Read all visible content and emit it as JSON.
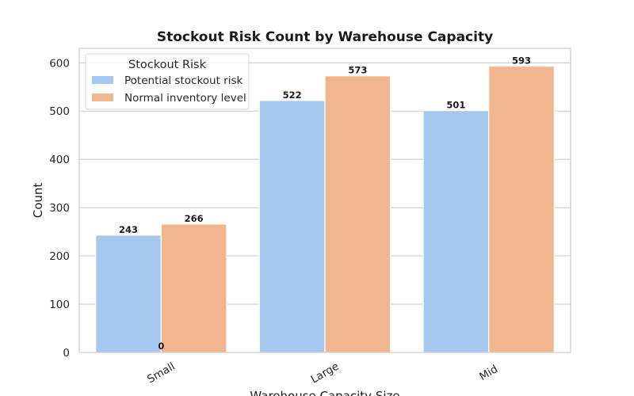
{
  "chart_data": {
    "type": "bar",
    "title": "Stockout Risk Count by Warehouse Capacity",
    "xlabel": "Warehouse Capacity Size",
    "ylabel": "Count",
    "categories": [
      "Small",
      "Large",
      "Mid"
    ],
    "series": [
      {
        "name": "Potential stockout risk",
        "values": [
          243,
          522,
          501
        ],
        "color": "#a7c8ee"
      },
      {
        "name": "Normal inventory level",
        "values": [
          266,
          573,
          593
        ],
        "color": "#f2b68e"
      }
    ],
    "extra_labels": [
      "0"
    ],
    "ylim": [
      0,
      630
    ],
    "yticks": [
      0,
      100,
      200,
      300,
      400,
      500,
      600
    ],
    "grid": true,
    "legend": {
      "title": "Stockout Risk",
      "placement": "top-left"
    }
  }
}
